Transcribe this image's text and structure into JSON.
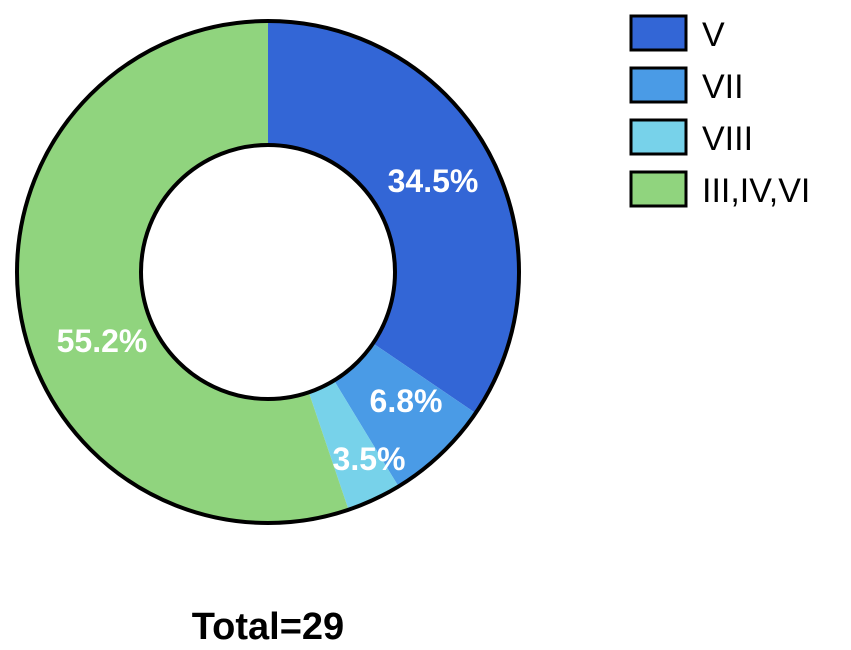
{
  "chart_data": {
    "type": "pie",
    "donut": true,
    "categories": [
      "V",
      "VII",
      "VIII",
      "III,IV,VI"
    ],
    "values": [
      34.5,
      6.8,
      3.5,
      55.2
    ],
    "value_labels": [
      "34.5%",
      "6.8%",
      "3.5%",
      "55.2%"
    ],
    "colors": [
      "#3366d6",
      "#4a9be6",
      "#77d2ea",
      "#90d47e"
    ],
    "legend": {
      "position": "top-right",
      "entries": [
        "V",
        "VII",
        "VIII",
        "III,IV,VI"
      ]
    },
    "annotation": "Total=29"
  }
}
